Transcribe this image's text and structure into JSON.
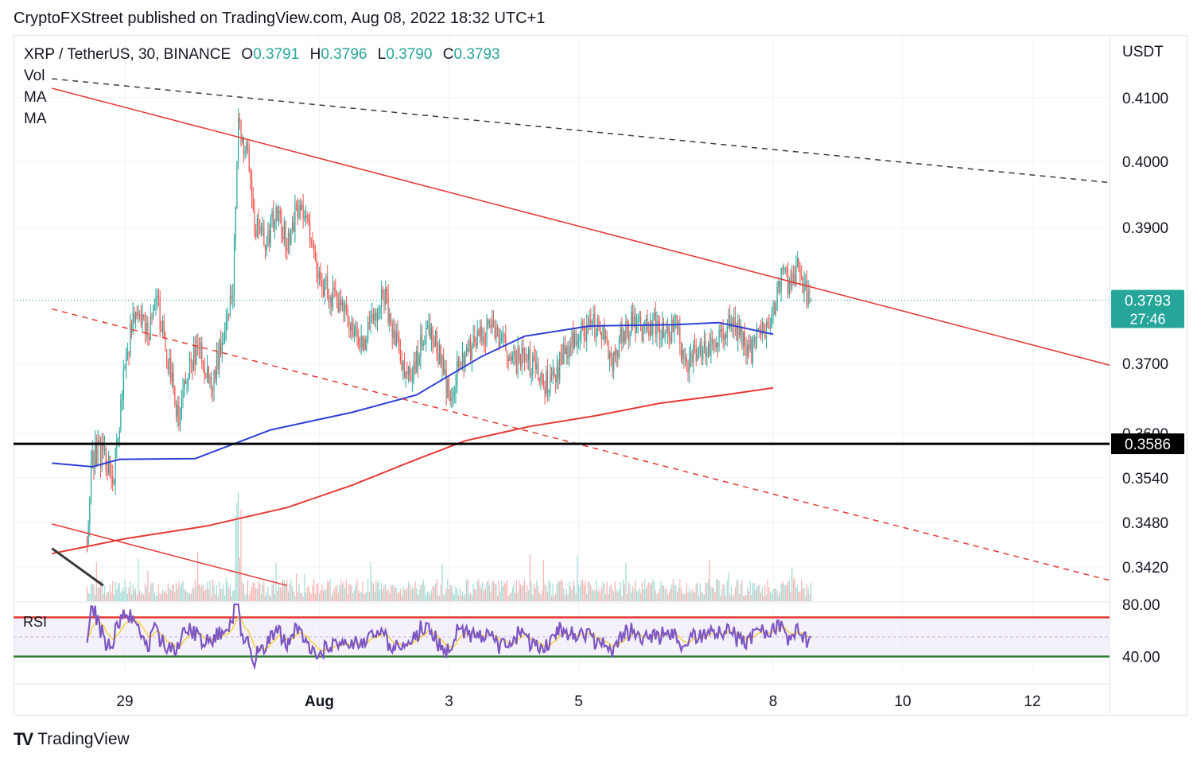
{
  "header": {
    "publisher_line": "CryptoFXStreet published on TradingView.com, Aug 08, 2022 18:32 UTC+1"
  },
  "legend": {
    "symbol": "XRP / TetherUS, 30, BINANCE",
    "o_label": "O",
    "o_value": "0.3791",
    "h_label": "H",
    "h_value": "0.3796",
    "l_label": "L",
    "l_value": "0.3790",
    "c_label": "C",
    "c_value": "0.3793",
    "indicators": [
      "Vol",
      "MA",
      "MA"
    ]
  },
  "rsi_label": "RSI",
  "footer": {
    "brand": "TradingView"
  },
  "colors": {
    "up": "#26a69a",
    "down": "#ef5350",
    "trend_red": "#e53935",
    "ma_blue": "#2f3fd6",
    "ma_red": "#e53935",
    "rsi": "#7e57c2",
    "rsi_ma": "#f5d33b"
  },
  "chart_data": {
    "type": "candlestick",
    "title": "XRP / TetherUS, 30, BINANCE",
    "currency": "USDT",
    "last_price": "0.3793",
    "countdown": "27:46",
    "support_label": "0.3586",
    "y_ticks": [
      "0.4100",
      "0.4000",
      "0.3900",
      "0.3700",
      "0.3600",
      "0.3540",
      "0.3480",
      "0.3420"
    ],
    "x_ticks": [
      "29",
      "Aug",
      "3",
      "5",
      "8",
      "10",
      "12"
    ],
    "rsi_ticks": [
      "80.00",
      "40.00"
    ],
    "price_path": [
      [
        "07-28 10:00",
        0.346
      ],
      [
        "07-28 12:00",
        0.357
      ],
      [
        "07-28 16:00",
        0.3575
      ],
      [
        "07-28 20:00",
        0.354
      ],
      [
        "07-29 00:00",
        0.37
      ],
      [
        "07-29 04:00",
        0.378
      ],
      [
        "07-29 08:00",
        0.374
      ],
      [
        "07-29 12:00",
        0.379
      ],
      [
        "07-29 16:00",
        0.37
      ],
      [
        "07-29 20:00",
        0.362
      ],
      [
        "07-30 00:00",
        0.37
      ],
      [
        "07-30 04:00",
        0.372
      ],
      [
        "07-30 08:00",
        0.366
      ],
      [
        "07-30 12:00",
        0.374
      ],
      [
        "07-30 16:00",
        0.381
      ],
      [
        "07-30 18:00",
        0.406
      ],
      [
        "07-30 22:00",
        0.4
      ],
      [
        "07-31 00:00",
        0.39
      ],
      [
        "07-31 04:00",
        0.388
      ],
      [
        "07-31 08:00",
        0.392
      ],
      [
        "07-31 12:00",
        0.388
      ],
      [
        "07-31 16:00",
        0.393
      ],
      [
        "07-31 20:00",
        0.39
      ],
      [
        "08-01 00:00",
        0.383
      ],
      [
        "08-01 04:00",
        0.38
      ],
      [
        "08-01 08:00",
        0.378
      ],
      [
        "08-01 12:00",
        0.376
      ],
      [
        "08-01 16:00",
        0.372
      ],
      [
        "08-01 20:00",
        0.377
      ],
      [
        "08-02 00:00",
        0.38
      ],
      [
        "08-02 04:00",
        0.374
      ],
      [
        "08-02 08:00",
        0.368
      ],
      [
        "08-02 12:00",
        0.37
      ],
      [
        "08-02 16:00",
        0.376
      ],
      [
        "08-02 20:00",
        0.372
      ],
      [
        "08-03 00:00",
        0.365
      ],
      [
        "08-03 04:00",
        0.37
      ],
      [
        "08-03 08:00",
        0.372
      ],
      [
        "08-03 12:00",
        0.374
      ],
      [
        "08-03 16:00",
        0.376
      ],
      [
        "08-03 20:00",
        0.373
      ],
      [
        "08-04 00:00",
        0.37
      ],
      [
        "08-04 04:00",
        0.371
      ],
      [
        "08-04 08:00",
        0.369
      ],
      [
        "08-04 12:00",
        0.367
      ],
      [
        "08-04 16:00",
        0.369
      ],
      [
        "08-04 20:00",
        0.372
      ],
      [
        "08-05 00:00",
        0.374
      ],
      [
        "08-05 04:00",
        0.376
      ],
      [
        "08-05 08:00",
        0.375
      ],
      [
        "08-05 12:00",
        0.37
      ],
      [
        "08-05 16:00",
        0.374
      ],
      [
        "08-05 20:00",
        0.376
      ],
      [
        "08-06 00:00",
        0.375
      ],
      [
        "08-06 04:00",
        0.376
      ],
      [
        "08-06 08:00",
        0.374
      ],
      [
        "08-06 12:00",
        0.375
      ],
      [
        "08-06 16:00",
        0.37
      ],
      [
        "08-06 20:00",
        0.372
      ],
      [
        "08-07 00:00",
        0.373
      ],
      [
        "08-07 04:00",
        0.374
      ],
      [
        "08-07 08:00",
        0.376
      ],
      [
        "08-07 12:00",
        0.374
      ],
      [
        "08-07 16:00",
        0.372
      ],
      [
        "08-07 20:00",
        0.374
      ],
      [
        "08-08 00:00",
        0.378
      ],
      [
        "08-08 03:00",
        0.383
      ],
      [
        "08-08 06:00",
        0.382
      ],
      [
        "08-08 09:00",
        0.384
      ],
      [
        "08-08 12:00",
        0.38
      ],
      [
        "08-08 14:00",
        0.3793
      ]
    ],
    "ma_fast": [
      [
        "07-27 21:00",
        0.356
      ],
      [
        "07-28 12:00",
        0.3555
      ],
      [
        "07-28 22:00",
        0.3565
      ],
      [
        "07-30 02:00",
        0.3566
      ],
      [
        "07-31 06:00",
        0.3605
      ],
      [
        "08-01 12:00",
        0.363
      ],
      [
        "08-02 12:00",
        0.3655
      ],
      [
        "08-03 12:00",
        0.371
      ],
      [
        "08-04 04:00",
        0.374
      ],
      [
        "08-05 04:00",
        0.3755
      ],
      [
        "08-06 12:00",
        0.3757
      ],
      [
        "08-07 04:00",
        0.376
      ],
      [
        "08-08 00:00",
        0.3743
      ]
    ],
    "ma_slow": [
      [
        "07-27 21:00",
        0.3438
      ],
      [
        "07-29 00:00",
        0.3458
      ],
      [
        "07-30 06:00",
        0.3475
      ],
      [
        "07-31 12:00",
        0.35
      ],
      [
        "08-01 12:00",
        0.353
      ],
      [
        "08-02 12:00",
        0.3565
      ],
      [
        "08-03 06:00",
        0.359
      ],
      [
        "08-04 06:00",
        0.361
      ],
      [
        "08-05 06:00",
        0.3625
      ],
      [
        "08-06 06:00",
        0.3643
      ],
      [
        "08-07 06:00",
        0.3655
      ],
      [
        "08-08 00:00",
        0.3665
      ]
    ],
    "trendlines": [
      {
        "style": "solid",
        "color": "red",
        "from": [
          "07-27 21:00",
          0.4115
        ],
        "to": [
          "08-13 12:00",
          0.369
        ]
      },
      {
        "style": "dashed",
        "color": "black",
        "from": [
          "07-27 21:00",
          0.413
        ],
        "to": [
          "08-13 12:00",
          0.3965
        ]
      },
      {
        "style": "dashed",
        "color": "red",
        "from": [
          "07-27 21:00",
          0.378
        ],
        "to": [
          "08-13 12:00",
          0.3395
        ]
      },
      {
        "style": "solid",
        "color": "red",
        "from": [
          "07-27 21:00",
          0.3478
        ],
        "to": [
          "07-31 12:00",
          0.3395
        ]
      },
      {
        "style": "solid",
        "color": "black",
        "from": [
          "07-27 21:00",
          0.3445
        ],
        "to": [
          "07-28 16:00",
          0.3395
        ]
      }
    ],
    "support_level": 0.3586,
    "rsi_levels": [
      70,
      40
    ],
    "rsi_range": [
      30,
      80
    ]
  }
}
